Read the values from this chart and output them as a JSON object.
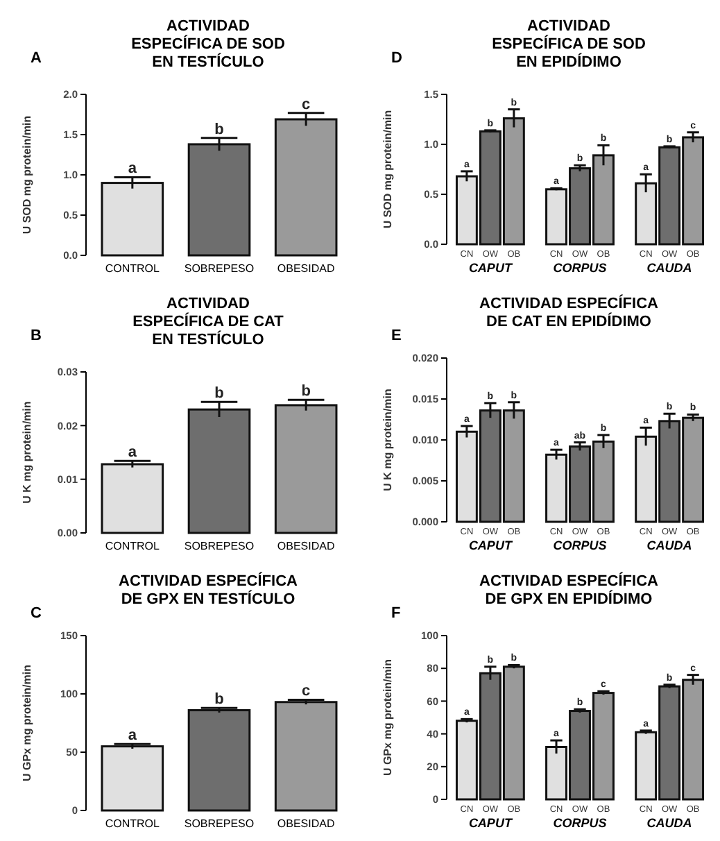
{
  "chart_data": [
    {
      "type": "bar",
      "title": "ACTIVIDAD\nESPECÍFICA DE SOD\nEN TESTÍCULO",
      "ylabel": "U SOD mg protein/min",
      "annotations": [
        "A"
      ],
      "categories": [
        "CONTROL",
        "SOBREPESO",
        "OBESIDAD"
      ],
      "series": [
        {
          "colors": [
            "#e0e0e0",
            "#6e6e6e",
            "#9a9a9a"
          ],
          "values": [
            0.9,
            1.38,
            1.69
          ],
          "errors": [
            0.07,
            0.08,
            0.08
          ],
          "value_labels": [
            "a",
            "b",
            "c"
          ]
        }
      ],
      "ylim": [
        0,
        2
      ],
      "yticks": [
        {
          "value": 0,
          "label": "0.0"
        },
        {
          "value": 0.5,
          "label": "0.5"
        },
        {
          "value": 1,
          "label": "1.0"
        },
        {
          "value": 1.5,
          "label": "1.5"
        },
        {
          "value": 2,
          "label": "2.0"
        }
      ]
    },
    {
      "type": "bar",
      "title": "ACTIVIDAD\nESPECÍFICA DE SOD\nEN EPIDÍDIMO",
      "ylabel": "U SOD mg protein/min",
      "annotations": [
        "D"
      ],
      "categories": [
        "CAPUT",
        "CORPUS",
        "CAUDA"
      ],
      "series": [
        {
          "name": "CN",
          "color": "#e0e0e0",
          "values": [
            0.68,
            0.55,
            0.61
          ],
          "errors": [
            0.05,
            0.01,
            0.09
          ],
          "value_labels": [
            "a",
            "a",
            "a"
          ]
        },
        {
          "name": "OW",
          "color": "#6e6e6e",
          "values": [
            1.13,
            0.76,
            0.97
          ],
          "errors": [
            0.01,
            0.03,
            0.01
          ],
          "value_labels": [
            "b",
            "b",
            "b"
          ]
        },
        {
          "name": "OB",
          "color": "#9a9a9a",
          "values": [
            1.26,
            0.89,
            1.07
          ],
          "errors": [
            0.09,
            0.1,
            0.05
          ],
          "value_labels": [
            "b",
            "b",
            "c"
          ]
        }
      ],
      "ylim": [
        0,
        1.5
      ],
      "yticks": [
        {
          "value": 0,
          "label": "0.0"
        },
        {
          "value": 0.5,
          "label": "0.5"
        },
        {
          "value": 1,
          "label": "1.0"
        },
        {
          "value": 1.5,
          "label": "1.5"
        }
      ]
    },
    {
      "type": "bar",
      "title": "ACTIVIDAD\nESPECÍFICA DE CAT\nEN TESTÍCULO",
      "ylabel": "U K mg protein/min",
      "annotations": [
        "B"
      ],
      "categories": [
        "CONTROL",
        "SOBREPESO",
        "OBESIDAD"
      ],
      "series": [
        {
          "colors": [
            "#e0e0e0",
            "#6e6e6e",
            "#9a9a9a"
          ],
          "values": [
            0.0128,
            0.023,
            0.0238
          ],
          "errors": [
            0.0006,
            0.0014,
            0.001
          ],
          "value_labels": [
            "a",
            "b",
            "b"
          ]
        }
      ],
      "ylim": [
        0,
        0.03
      ],
      "yticks": [
        {
          "value": 0,
          "label": "0.00"
        },
        {
          "value": 0.01,
          "label": "0.01"
        },
        {
          "value": 0.02,
          "label": "0.02"
        },
        {
          "value": 0.03,
          "label": "0.03"
        }
      ]
    },
    {
      "type": "bar",
      "title": "ACTIVIDAD ESPECÍFICA\nDE CAT EN EPIDÍDIMO",
      "ylabel": "U K mg protein/min",
      "annotations": [
        "E"
      ],
      "categories": [
        "CAPUT",
        "CORPUS",
        "CAUDA"
      ],
      "series": [
        {
          "name": "CN",
          "color": "#e0e0e0",
          "values": [
            0.011,
            0.0082,
            0.0104
          ],
          "errors": [
            0.0007,
            0.0006,
            0.0011
          ],
          "value_labels": [
            "a",
            "a",
            "a"
          ]
        },
        {
          "name": "OW",
          "color": "#6e6e6e",
          "values": [
            0.0136,
            0.0092,
            0.0123
          ],
          "errors": [
            0.0009,
            0.0005,
            0.0009
          ],
          "value_labels": [
            "b",
            "ab",
            "b"
          ]
        },
        {
          "name": "OB",
          "color": "#9a9a9a",
          "values": [
            0.0136,
            0.0098,
            0.0127
          ],
          "errors": [
            0.001,
            0.0008,
            0.0004
          ],
          "value_labels": [
            "b",
            "b",
            "b"
          ]
        }
      ],
      "ylim": [
        0,
        0.02
      ],
      "yticks": [
        {
          "value": 0,
          "label": "0.000"
        },
        {
          "value": 0.005,
          "label": "0.005"
        },
        {
          "value": 0.01,
          "label": "0.010"
        },
        {
          "value": 0.015,
          "label": "0.015"
        },
        {
          "value": 0.02,
          "label": "0.020"
        }
      ]
    },
    {
      "type": "bar",
      "title": "ACTIVIDAD ESPECÍFICA\nDE GPX EN TESTÍCULO",
      "ylabel": "U GPx mg protein/min",
      "annotations": [
        "C"
      ],
      "categories": [
        "CONTROL",
        "SOBREPESO",
        "OBESIDAD"
      ],
      "series": [
        {
          "colors": [
            "#e0e0e0",
            "#6e6e6e",
            "#9a9a9a"
          ],
          "values": [
            55,
            86,
            93
          ],
          "errors": [
            2,
            2,
            2
          ],
          "value_labels": [
            "a",
            "b",
            "c"
          ]
        }
      ],
      "ylim": [
        0,
        150
      ],
      "yticks": [
        0,
        50,
        100,
        150
      ]
    },
    {
      "type": "bar",
      "title": "ACTIVIDAD ESPECÍFICA\nDE GPX EN EPIDÍDIMO",
      "ylabel": "U GPx mg protein/min",
      "annotations": [
        "F"
      ],
      "categories": [
        "CAPUT",
        "CORPUS",
        "CAUDA"
      ],
      "series": [
        {
          "name": "CN",
          "color": "#e0e0e0",
          "values": [
            48,
            32,
            41
          ],
          "errors": [
            1,
            4,
            1
          ],
          "value_labels": [
            "a",
            "a",
            "a"
          ]
        },
        {
          "name": "OW",
          "color": "#6e6e6e",
          "values": [
            77,
            54,
            69
          ],
          "errors": [
            4,
            1,
            1
          ],
          "value_labels": [
            "b",
            "b",
            "b"
          ]
        },
        {
          "name": "OB",
          "color": "#9a9a9a",
          "values": [
            81,
            65,
            73
          ],
          "errors": [
            1,
            1,
            3
          ],
          "value_labels": [
            "b",
            "c",
            "c"
          ]
        }
      ],
      "ylim": [
        0,
        100
      ],
      "yticks": [
        0,
        20,
        40,
        60,
        80,
        100
      ]
    }
  ]
}
